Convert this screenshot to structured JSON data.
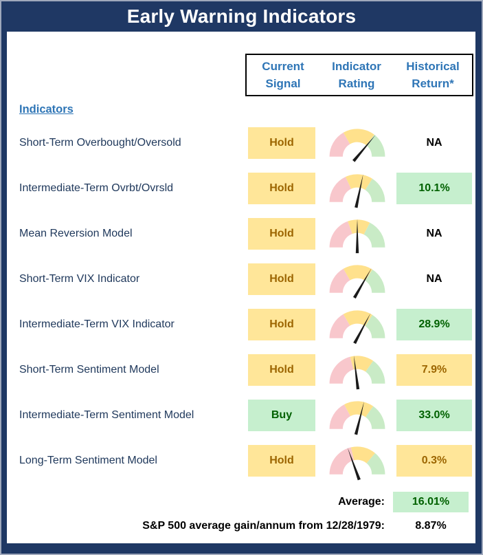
{
  "title": "Early Warning Indicators",
  "header": {
    "col_signal_line1": "Current",
    "col_signal_line2": "Signal",
    "col_rating_line1": "Indicator",
    "col_rating_line2": "Rating",
    "col_return_line1": "Historical",
    "col_return_line2": "Return*"
  },
  "indicators_heading": "Indicators",
  "chart_data": {
    "type": "table",
    "columns": [
      "Indicators",
      "Current Signal",
      "Indicator Rating",
      "Historical Return*"
    ],
    "gauge_description": "semicircular gauge, red zone left / yellow middle / green right, black needle; 180deg = far left, 90deg = vertical, 0deg = far right",
    "rows": [
      {
        "label": "Short-Term Overbought/Oversold",
        "signal": "Hold",
        "signal_style": "hold",
        "rating_needle_deg": 50,
        "rating_zones_deg": [
          120,
          52
        ],
        "return": "NA",
        "return_style": "plain"
      },
      {
        "label": "Intermediate-Term Ovrbt/Ovrsld",
        "signal": "Hold",
        "signal_style": "hold",
        "rating_needle_deg": 78,
        "rating_zones_deg": [
          115,
          57
        ],
        "return": "10.1%",
        "return_style": "good"
      },
      {
        "label": "Mean Reversion Model",
        "signal": "Hold",
        "signal_style": "hold",
        "rating_needle_deg": 90,
        "rating_zones_deg": [
          110,
          63
        ],
        "return": "NA",
        "return_style": "plain"
      },
      {
        "label": "Short-Term VIX Indicator",
        "signal": "Hold",
        "signal_style": "hold",
        "rating_needle_deg": 60,
        "rating_zones_deg": [
          120,
          57
        ],
        "return": "NA",
        "return_style": "plain"
      },
      {
        "label": "Intermediate-Term VIX Indicator",
        "signal": "Hold",
        "signal_style": "hold",
        "rating_needle_deg": 62,
        "rating_zones_deg": [
          120,
          57
        ],
        "return": "28.9%",
        "return_style": "good"
      },
      {
        "label": "Short-Term Sentiment Model",
        "signal": "Hold",
        "signal_style": "hold",
        "rating_needle_deg": 97,
        "rating_zones_deg": [
          105,
          55
        ],
        "return": "7.9%",
        "return_style": "neutral"
      },
      {
        "label": "Intermediate-Term Sentiment Model",
        "signal": "Buy",
        "signal_style": "buy",
        "rating_needle_deg": 76,
        "rating_zones_deg": [
          118,
          55
        ],
        "return": "33.0%",
        "return_style": "good"
      },
      {
        "label": "Long-Term Sentiment Model",
        "signal": "Hold",
        "signal_style": "hold",
        "rating_needle_deg": 110,
        "rating_zones_deg": [
          103,
          50
        ],
        "return": "0.3%",
        "return_style": "neutral"
      }
    ]
  },
  "footer": {
    "average_label": "Average:",
    "average_value": "16.01%",
    "sp500_label": "S&P 500 average gain/annum from 12/28/1979:",
    "sp500_value": "8.87%"
  },
  "colors": {
    "navy": "#1F3864",
    "header_blue": "#2E75B6",
    "label_text": "#20395C",
    "hold_bg": "#FFE699",
    "hold_text": "#9C6500",
    "good_bg": "#C6EFCE",
    "good_text": "#006100",
    "gauge_red": "#F8C7CC",
    "gauge_yellow": "#FFE18C",
    "gauge_green": "#C9EBC6",
    "needle_black": "#1A1A1A"
  }
}
